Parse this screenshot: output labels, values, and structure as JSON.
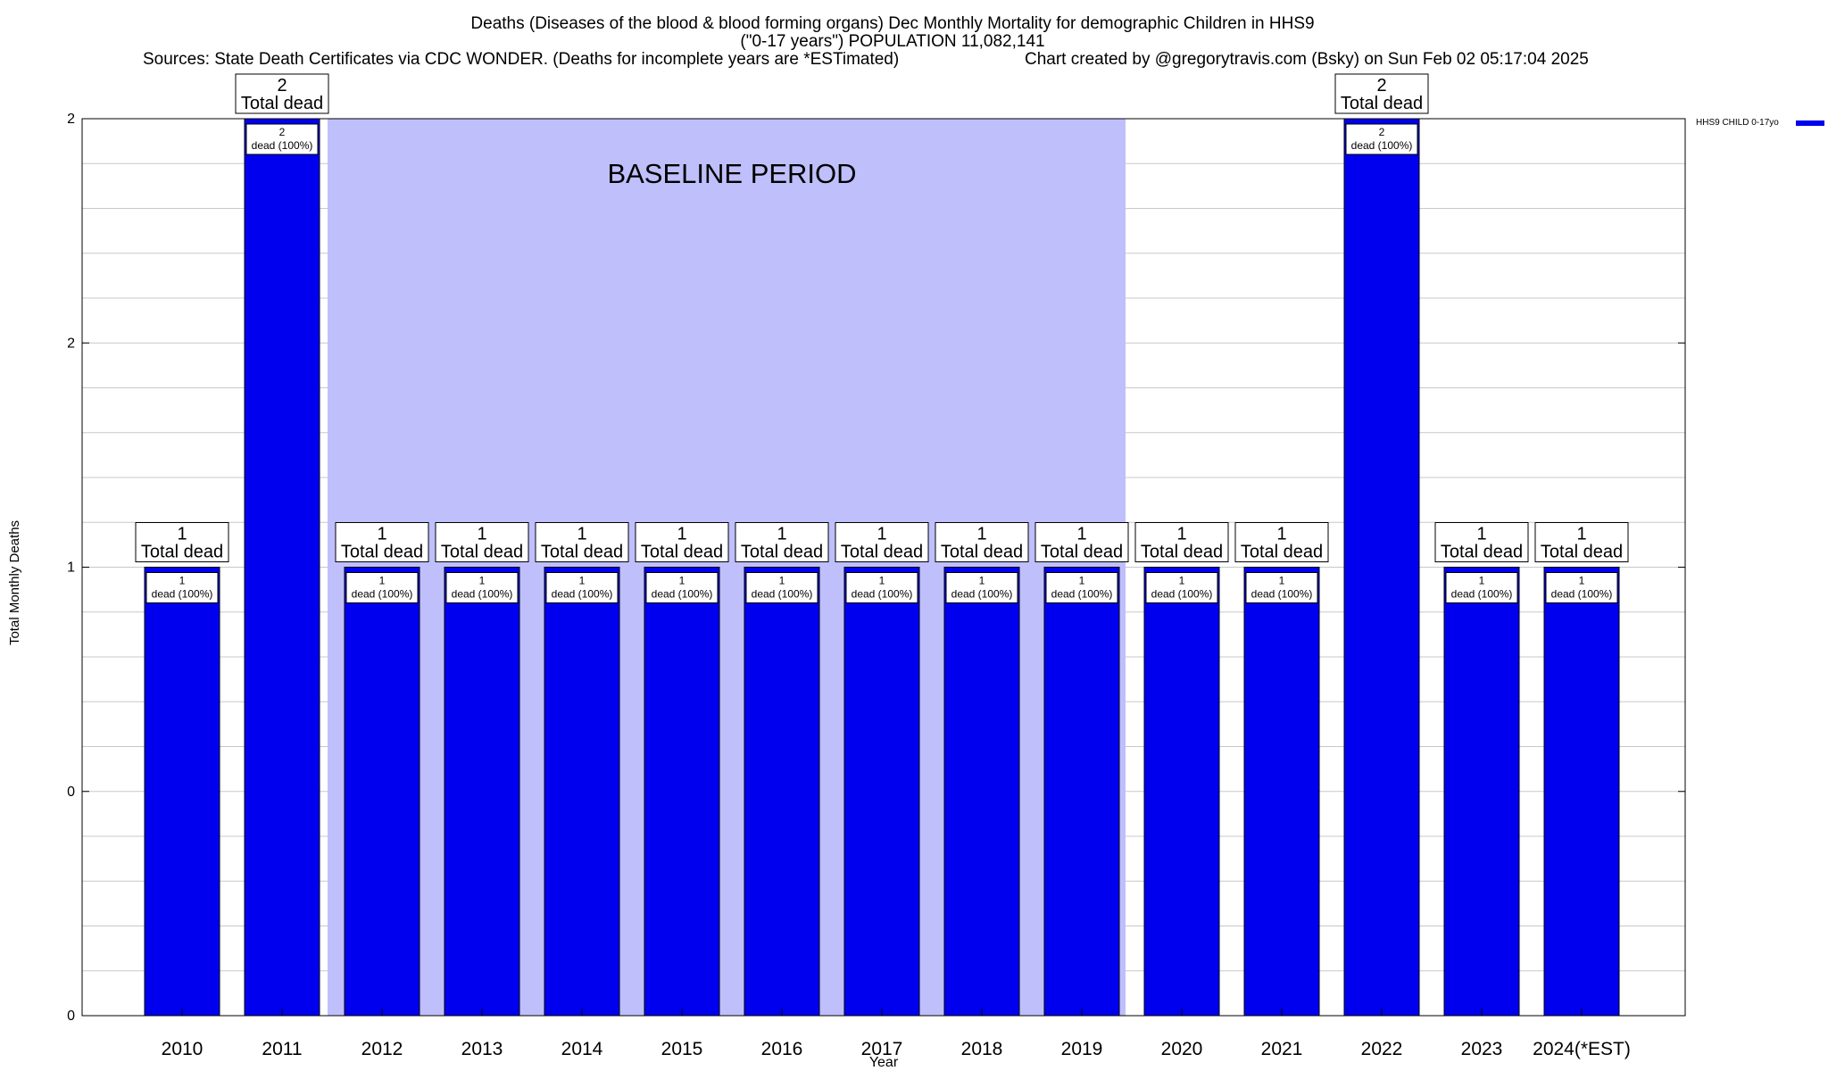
{
  "header": {
    "title_line1": "Deaths (Diseases of the blood & blood forming organs) Dec Monthly Mortality for demographic Children in HHS9",
    "title_line2": "(\"0-17 years\") POPULATION 11,082,141",
    "sources": "Sources: State Death Certificates via CDC WONDER. (Deaths for incomplete years are *ESTimated)",
    "credit": "Chart created by @gregorytravis.com (Bsky) on Sun Feb 02 05:17:04 2025"
  },
  "chart_data": {
    "type": "bar",
    "xlabel": "Year",
    "ylabel": "Total Monthly Deaths",
    "ylim": [
      0,
      2
    ],
    "y_tick_labels": [
      "0",
      "0",
      "1",
      "2",
      "2"
    ],
    "grid": true,
    "legend": {
      "label": "HHS9 CHILD 0-17yo",
      "position": "top-right",
      "color": "#0000ee"
    },
    "baseline_label": "BASELINE PERIOD",
    "baseline_range": [
      "2012",
      "2019"
    ],
    "categories": [
      "2010",
      "2011",
      "2012",
      "2013",
      "2014",
      "2015",
      "2016",
      "2017",
      "2018",
      "2019",
      "2020",
      "2021",
      "2022",
      "2023",
      "2024(*EST)"
    ],
    "series": [
      {
        "name": "HHS9 CHILD 0-17yo",
        "values": [
          1,
          2,
          1,
          1,
          1,
          1,
          1,
          1,
          1,
          1,
          1,
          1,
          2,
          1,
          1
        ]
      }
    ],
    "total_label": "Total dead",
    "inner_label": "dead (100%)",
    "colors": {
      "bar": "#0000ee",
      "baseline": "#bfbffb",
      "grid": "#c8c8c8"
    }
  }
}
